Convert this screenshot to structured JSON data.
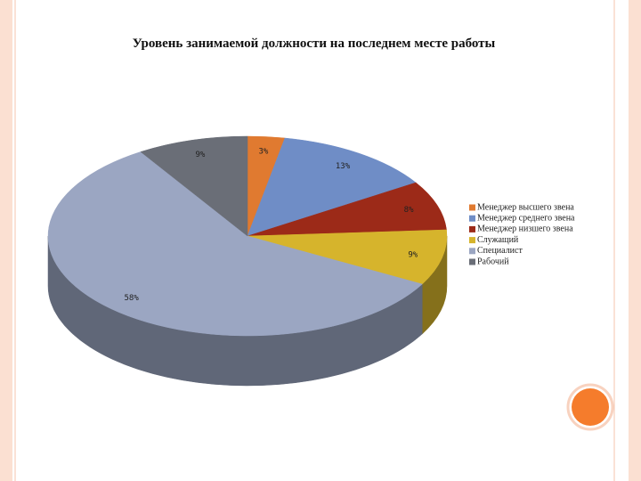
{
  "chart_data": {
    "type": "pie3d",
    "title": "Уровень занимаемой должности на последнем месте работы",
    "categories": [
      "Менеджер высшего звена",
      "Менеджер среднего звена",
      "Менеджер низшего звена",
      "Служащий",
      "Специалист",
      "Рабочий"
    ],
    "values": [
      3,
      13,
      8,
      9,
      58,
      9
    ],
    "value_labels": [
      "3%",
      "13%",
      "8%",
      "9%",
      "58%",
      "9%"
    ],
    "colors": [
      "#e07a30",
      "#6f8dc6",
      "#9c2a18",
      "#d6b42c",
      "#9ba6c2",
      "#6a6e77"
    ],
    "legend": "right"
  }
}
